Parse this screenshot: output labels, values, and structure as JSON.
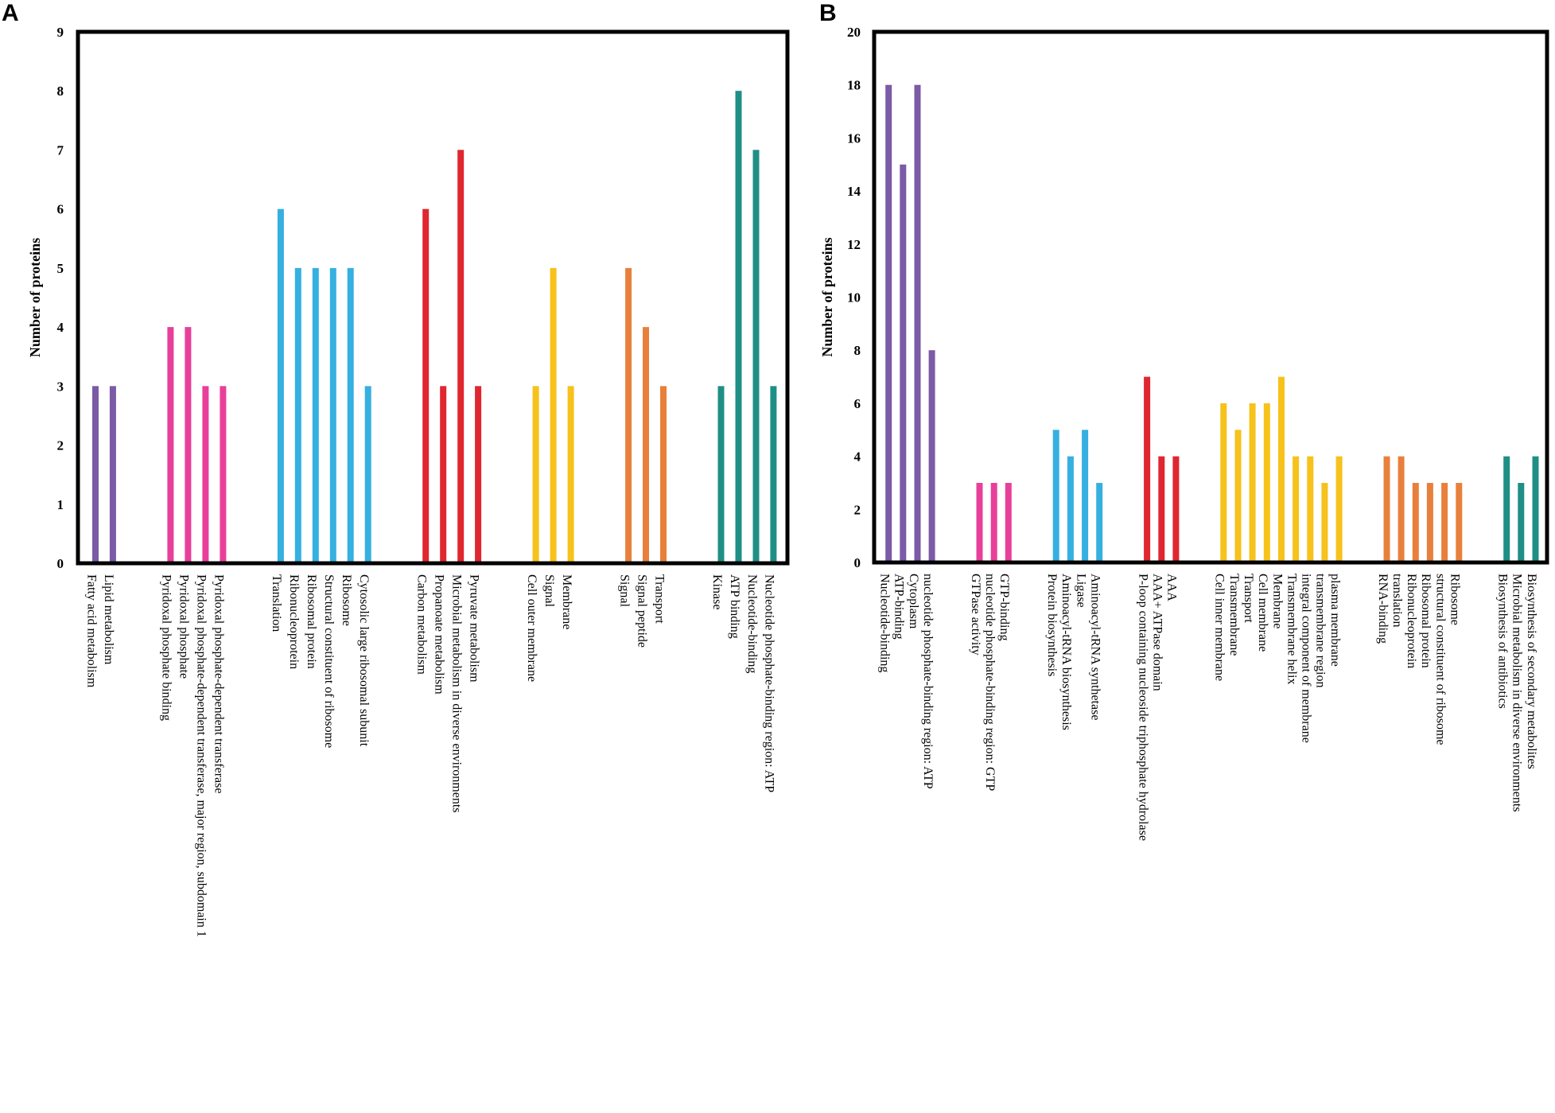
{
  "figure": {
    "panel_labels": [
      "A",
      "B"
    ]
  },
  "chart_data": [
    {
      "type": "bar",
      "panel": "A",
      "ylabel": "Number of proteins",
      "ylim": [
        0,
        9
      ],
      "yticks": [
        0,
        1,
        2,
        3,
        4,
        5,
        6,
        7,
        8,
        9
      ],
      "groups": [
        {
          "color": "#7b5aa6",
          "categories": [
            "Fatty acid metabolism",
            "Lipid metabolism"
          ],
          "values": [
            3,
            3
          ]
        },
        {
          "color": "#e8409a",
          "categories": [
            "Pyridoxal phosphate binding",
            "Pyridoxal phosphate",
            "Pyridoxal phosphate-dependent transferase, major region, subdomain 1",
            "Pyridoxal phosphate-dependent transferase"
          ],
          "values": [
            4,
            4,
            3,
            3
          ]
        },
        {
          "color": "#35b0e0",
          "categories": [
            "Translation",
            "Ribonucleoprotein",
            "Ribosomal protein",
            "Structural constituent of ribosome",
            "Ribosome",
            "Cytosolic large ribosomal subunit"
          ],
          "values": [
            6,
            5,
            5,
            5,
            5,
            3
          ]
        },
        {
          "color": "#e0262f",
          "categories": [
            "Carbon metabolism",
            "Propanoate metabolism",
            "Microbial metabolism in diverse environments",
            "Pyruvate metabolism"
          ],
          "values": [
            6,
            3,
            7,
            3
          ]
        },
        {
          "color": "#f6c21b",
          "categories": [
            "Cell outer membrane",
            "Signal",
            "Membrane"
          ],
          "values": [
            3,
            5,
            3
          ]
        },
        {
          "color": "#e8803c",
          "categories": [
            "Signal",
            "Signal peptide",
            "Transport"
          ],
          "values": [
            5,
            4,
            3
          ]
        },
        {
          "color": "#1f8f86",
          "categories": [
            "Kinase",
            "ATP binding",
            "Nucleotide-binding",
            "Nucleotide phosphate-binding region: ATP"
          ],
          "values": [
            3,
            8,
            7,
            3
          ]
        }
      ]
    },
    {
      "type": "bar",
      "panel": "B",
      "ylabel": "Number of proteins",
      "ylim": [
        0,
        20
      ],
      "yticks": [
        0,
        2,
        4,
        6,
        8,
        10,
        12,
        14,
        16,
        18,
        20
      ],
      "groups": [
        {
          "color": "#7b5aa6",
          "categories": [
            "Nucleotide-binding",
            "ATP-binding",
            "Cytoplasm",
            "nucleotide phosphate-binding region: ATP"
          ],
          "values": [
            18,
            15,
            18,
            8
          ]
        },
        {
          "color": "#e8409a",
          "categories": [
            "GTPase activity",
            "nucleotide phosphate-binding region: GTP",
            "GTP-binding"
          ],
          "values": [
            3,
            3,
            3
          ]
        },
        {
          "color": "#35b0e0",
          "categories": [
            "Protein biosynthesis",
            "Aminoacyl-tRNA biosynthesis",
            "Ligase",
            "Aminoacyl-tRNA synthetase"
          ],
          "values": [
            5,
            4,
            5,
            3
          ]
        },
        {
          "color": "#e0262f",
          "categories": [
            "P-loop containing nucleoside triphosphate hydrolase",
            "AAA+ ATPase domain",
            "AAA"
          ],
          "values": [
            7,
            4,
            4
          ]
        },
        {
          "color": "#f6c21b",
          "categories": [
            "Cell inner membrane",
            "Transmembrane",
            "Transport",
            "Cell membrane",
            "Membrane",
            "Transmembrane helix",
            "integral component of membrane",
            "transmembrane region",
            "plasma membrane"
          ],
          "values": [
            6,
            5,
            6,
            6,
            7,
            4,
            4,
            3,
            4
          ]
        },
        {
          "color": "#e8803c",
          "categories": [
            "RNA-binding",
            "translation",
            "Ribonucleoprotein",
            "Ribosomal protein",
            "structural constituent of ribosome",
            "Ribosome"
          ],
          "values": [
            4,
            4,
            3,
            3,
            3,
            3
          ]
        },
        {
          "color": "#1f8f86",
          "categories": [
            "Biosynthesis of antibiotics",
            "Microbial metabolism in diverse environments",
            "Biosynthesis of secondary metabolites"
          ],
          "values": [
            4,
            3,
            4
          ]
        }
      ]
    }
  ]
}
